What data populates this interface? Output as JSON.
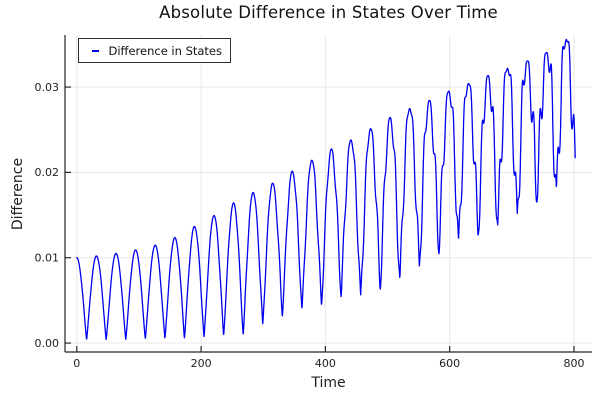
{
  "chart_data": {
    "type": "line",
    "title": "Absolute Difference in States Over Time",
    "xlabel": "Time",
    "ylabel": "Difference",
    "legend": {
      "position": "top-left",
      "entries": [
        "Difference in States"
      ]
    },
    "xlim": [
      -19,
      829
    ],
    "ylim": [
      -0.00105,
      0.0361
    ],
    "x_ticks": [
      0,
      200,
      400,
      600,
      800
    ],
    "x_tick_labels": [
      "0",
      "200",
      "400",
      "600",
      "800"
    ],
    "y_ticks": [
      0,
      0.01,
      0.02,
      0.03
    ],
    "y_tick_labels": [
      "0.00",
      "0.01",
      "0.02",
      "0.03"
    ],
    "grid": true,
    "colors": {
      "line": "#0000ee",
      "grid": "#e9e9e9",
      "axis": "#262626",
      "tick_text": "#1f1f1f"
    },
    "series": [
      {
        "name": "Difference in States",
        "color": "#0000ee",
        "t_range": [
          0,
          802
        ],
        "oscillation_period": 31.5,
        "shape_exponent": 1.15,
        "ripple_period": 9.3,
        "ripple_phase": 1.0,
        "upper_envelope": [
          [
            0,
            0.01
          ],
          [
            31,
            0.0102
          ],
          [
            63,
            0.0105
          ],
          [
            94,
            0.0109
          ],
          [
            128,
            0.0115
          ],
          [
            159,
            0.0124
          ],
          [
            190,
            0.0137
          ],
          [
            222,
            0.015
          ],
          [
            254,
            0.0165
          ],
          [
            285,
            0.0177
          ],
          [
            317,
            0.0188
          ],
          [
            348,
            0.0202
          ],
          [
            380,
            0.0215
          ],
          [
            411,
            0.0228
          ],
          [
            447,
            0.024
          ],
          [
            479,
            0.0254
          ],
          [
            513,
            0.0268
          ],
          [
            543,
            0.0277
          ],
          [
            576,
            0.0287
          ],
          [
            606,
            0.0298
          ],
          [
            641,
            0.0307
          ],
          [
            673,
            0.0317
          ],
          [
            705,
            0.0325
          ],
          [
            737,
            0.0334
          ],
          [
            769,
            0.0345
          ],
          [
            788,
            0.0356
          ],
          [
            802,
            0.035
          ]
        ],
        "lower_envelope": [
          [
            0,
            0.0004
          ],
          [
            60,
            0.0004
          ],
          [
            120,
            0.0005
          ],
          [
            180,
            0.0006
          ],
          [
            233,
            0.0009
          ],
          [
            264,
            0.0008
          ],
          [
            295,
            0.0021
          ],
          [
            326,
            0.003
          ],
          [
            356,
            0.0039
          ],
          [
            400,
            0.0045
          ],
          [
            436,
            0.0058
          ],
          [
            466,
            0.0055
          ],
          [
            500,
            0.0066
          ],
          [
            540,
            0.0085
          ],
          [
            575,
            0.01
          ],
          [
            610,
            0.012
          ],
          [
            640,
            0.0124
          ],
          [
            660,
            0.013
          ],
          [
            694,
            0.0146
          ],
          [
            727,
            0.0158
          ],
          [
            759,
            0.0175
          ],
          [
            785,
            0.0188
          ],
          [
            802,
            0.0195
          ]
        ],
        "ripple_amplitude": [
          [
            0,
            5e-05
          ],
          [
            150,
            0.0001
          ],
          [
            250,
            0.0002
          ],
          [
            320,
            0.0004
          ],
          [
            360,
            0.0005
          ],
          [
            400,
            0.0008
          ],
          [
            450,
            0.0013
          ],
          [
            520,
            0.0019
          ],
          [
            600,
            0.0024
          ],
          [
            680,
            0.0029
          ],
          [
            750,
            0.0033
          ],
          [
            802,
            0.0036
          ]
        ]
      }
    ]
  }
}
